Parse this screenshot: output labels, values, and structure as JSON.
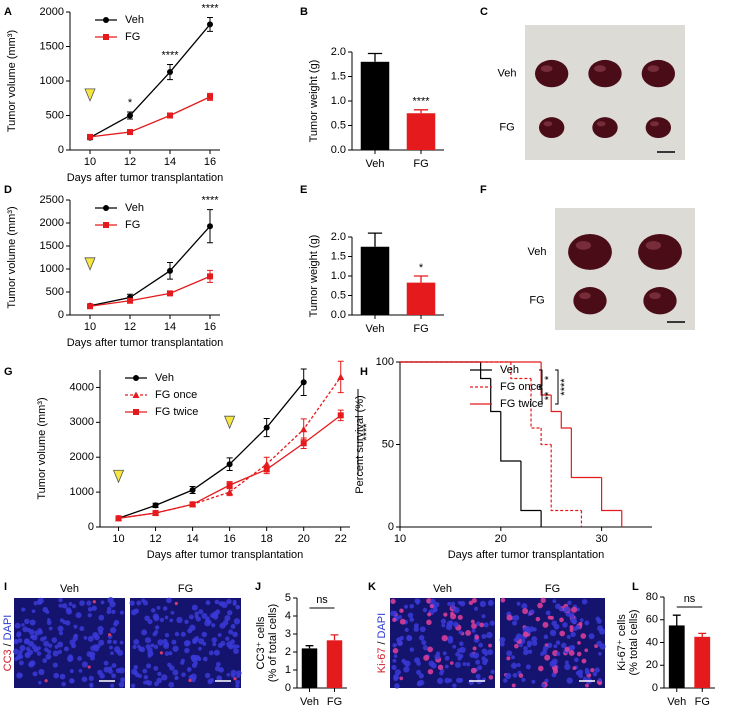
{
  "chart_data": [
    {
      "panel": "A",
      "type": "line",
      "x": [
        10,
        12,
        14,
        16
      ],
      "xlim": [
        9,
        16.5
      ],
      "xticks": [
        10,
        12,
        14,
        16
      ],
      "ylim": [
        0,
        2000
      ],
      "yticks": [
        0,
        500,
        1000,
        1500,
        2000
      ],
      "ylabel": "Tumor volume (mm³)",
      "xlabel": "Days after tumor transplantation",
      "legend": "upper left",
      "treatment_days": [
        10
      ],
      "significance": [
        null,
        "*",
        "****",
        "****"
      ],
      "series": [
        {
          "name": "Veh",
          "color": "#000000",
          "marker": "circle",
          "values": [
            180,
            500,
            1130,
            1820
          ],
          "errors": [
            30,
            50,
            110,
            100
          ]
        },
        {
          "name": "FG",
          "color": "#e41a1c",
          "marker": "square",
          "values": [
            190,
            260,
            500,
            770
          ],
          "errors": [
            20,
            20,
            30,
            50
          ]
        }
      ]
    },
    {
      "panel": "B",
      "type": "bar",
      "categories": [
        "Veh",
        "FG"
      ],
      "values": [
        1.8,
        0.75
      ],
      "errors": [
        0.17,
        0.07
      ],
      "colors": [
        "#000000",
        "#e41a1c"
      ],
      "ylim": [
        0,
        2
      ],
      "yticks": [
        {
          "value": 0,
          "label": "0.0"
        },
        0.5,
        {
          "value": 1,
          "label": "1.0"
        },
        1.5,
        {
          "value": 2,
          "label": "2.0"
        }
      ],
      "ylabel": "Tumor weight (g)",
      "significance": [
        null,
        "****"
      ]
    },
    {
      "panel": "C",
      "type": "image",
      "kind": "photo",
      "rows": [
        "Veh",
        "FG"
      ]
    },
    {
      "panel": "D",
      "type": "line",
      "x": [
        10,
        12,
        14,
        16
      ],
      "xlim": [
        9,
        16.5
      ],
      "xticks": [
        10,
        12,
        14,
        16
      ],
      "ylim": [
        0,
        2500
      ],
      "yticks": [
        0,
        500,
        1000,
        1500,
        2000,
        2500
      ],
      "ylabel": "Tumor volume (mm³)",
      "xlabel": "Days after tumor transplantation",
      "legend": "upper left",
      "treatment_days": [
        10
      ],
      "significance": [
        null,
        null,
        null,
        "****"
      ],
      "series": [
        {
          "name": "Veh",
          "color": "#000000",
          "marker": "circle",
          "values": [
            200,
            380,
            960,
            1930
          ],
          "errors": [
            30,
            70,
            180,
            360
          ]
        },
        {
          "name": "FG",
          "color": "#e41a1c",
          "marker": "square",
          "values": [
            190,
            310,
            470,
            840
          ],
          "errors": [
            20,
            30,
            40,
            130
          ]
        }
      ]
    },
    {
      "panel": "E",
      "type": "bar",
      "categories": [
        "Veh",
        "FG"
      ],
      "values": [
        1.75,
        0.83
      ],
      "errors": [
        0.35,
        0.17
      ],
      "colors": [
        "#000000",
        "#e41a1c"
      ],
      "ylim": [
        0,
        2
      ],
      "yticks": [
        {
          "value": 0,
          "label": "0.0"
        },
        0.5,
        {
          "value": 1,
          "label": "1.0"
        },
        1.5,
        {
          "value": 2,
          "label": "2.0"
        }
      ],
      "ylabel": "Tumor weight (g)",
      "significance": [
        null,
        "*"
      ]
    },
    {
      "panel": "F",
      "type": "image",
      "kind": "photo",
      "rows": [
        "Veh",
        "FG"
      ]
    },
    {
      "panel": "G",
      "type": "line",
      "x": [
        10,
        12,
        14,
        16,
        18,
        20,
        22
      ],
      "xlim": [
        9,
        22.5
      ],
      "xticks": [
        10,
        12,
        14,
        16,
        18,
        20,
        22
      ],
      "ylim": [
        0,
        4500
      ],
      "yticks": [
        0,
        1000,
        2000,
        3000,
        4000
      ],
      "ylabel": "Tumor volume (mm³)",
      "xlabel": "Days after tumor transplantation",
      "legend": "upper left",
      "treatment_days": [
        10,
        16
      ],
      "significance": "****",
      "series": [
        {
          "name": "Veh",
          "color": "#000000",
          "marker": "circle",
          "values": [
            250,
            620,
            1060,
            1800,
            2850,
            4150,
            null
          ],
          "errors": [
            30,
            60,
            100,
            180,
            260,
            380,
            null
          ]
        },
        {
          "name": "FG once",
          "color": "#e41a1c",
          "marker": "triangle",
          "dash": true,
          "values": [
            250,
            400,
            650,
            1000,
            1800,
            2800,
            4300
          ],
          "errors": [
            20,
            30,
            50,
            100,
            200,
            300,
            450
          ]
        },
        {
          "name": "FG twice",
          "color": "#e41a1c",
          "marker": "square",
          "values": [
            250,
            400,
            650,
            1200,
            1650,
            2400,
            3200
          ],
          "errors": [
            20,
            30,
            40,
            100,
            120,
            150,
            150
          ]
        }
      ]
    },
    {
      "panel": "H",
      "type": "step",
      "xlim": [
        10,
        35
      ],
      "xticks": [
        10,
        20,
        30
      ],
      "ylim": [
        0,
        100
      ],
      "yticks": [
        0,
        50,
        100
      ],
      "ylabel": "Percent survival (%)",
      "xlabel": "Days after tumor transplantation",
      "legend": "upper right",
      "comparisons": [
        "*",
        "**",
        "****"
      ],
      "series": [
        {
          "name": "Veh",
          "color": "#000000",
          "x": [
            10,
            18,
            19,
            20,
            22,
            24
          ],
          "values": [
            100,
            90,
            70,
            40,
            10,
            0
          ]
        },
        {
          "name": "FG once",
          "color": "#e41a1c",
          "dash": true,
          "x": [
            10,
            21,
            23,
            24,
            25,
            28
          ],
          "values": [
            100,
            90,
            60,
            50,
            10,
            0
          ]
        },
        {
          "name": "FG twice",
          "color": "#e41a1c",
          "x": [
            10,
            24,
            25,
            26,
            27,
            30,
            32
          ],
          "values": [
            100,
            80,
            70,
            60,
            30,
            10,
            0
          ]
        }
      ]
    },
    {
      "panel": "I",
      "type": "image",
      "kind": "micro",
      "columns": [
        "Veh",
        "FG"
      ],
      "stain": [
        "CC3",
        "/",
        "DAPI"
      ]
    },
    {
      "panel": "J",
      "type": "bar",
      "categories": [
        "Veh",
        "FG"
      ],
      "values": [
        2.2,
        2.65
      ],
      "errors": [
        0.15,
        0.3
      ],
      "colors": [
        "#000000",
        "#e41a1c"
      ],
      "ylim": [
        0,
        5
      ],
      "yticks": [
        0,
        1,
        2,
        3,
        4,
        5
      ],
      "ylabel": [
        "CC3⁺ cells",
        "(% of total cells)"
      ],
      "comparison": "ns"
    },
    {
      "panel": "K",
      "type": "image",
      "kind": "micro",
      "columns": [
        "Veh",
        "FG"
      ],
      "stain": [
        "Ki-67",
        "/",
        "DAPI"
      ]
    },
    {
      "panel": "L",
      "type": "bar",
      "categories": [
        "Veh",
        "FG"
      ],
      "values": [
        55,
        45
      ],
      "errors": [
        9,
        3
      ],
      "colors": [
        "#000000",
        "#e41a1c"
      ],
      "ylim": [
        0,
        80
      ],
      "yticks": [
        0,
        20,
        40,
        60,
        80
      ],
      "ylabel": [
        "Ki-67⁺ cells",
        "(% total cells)"
      ],
      "comparison": "ns"
    }
  ]
}
